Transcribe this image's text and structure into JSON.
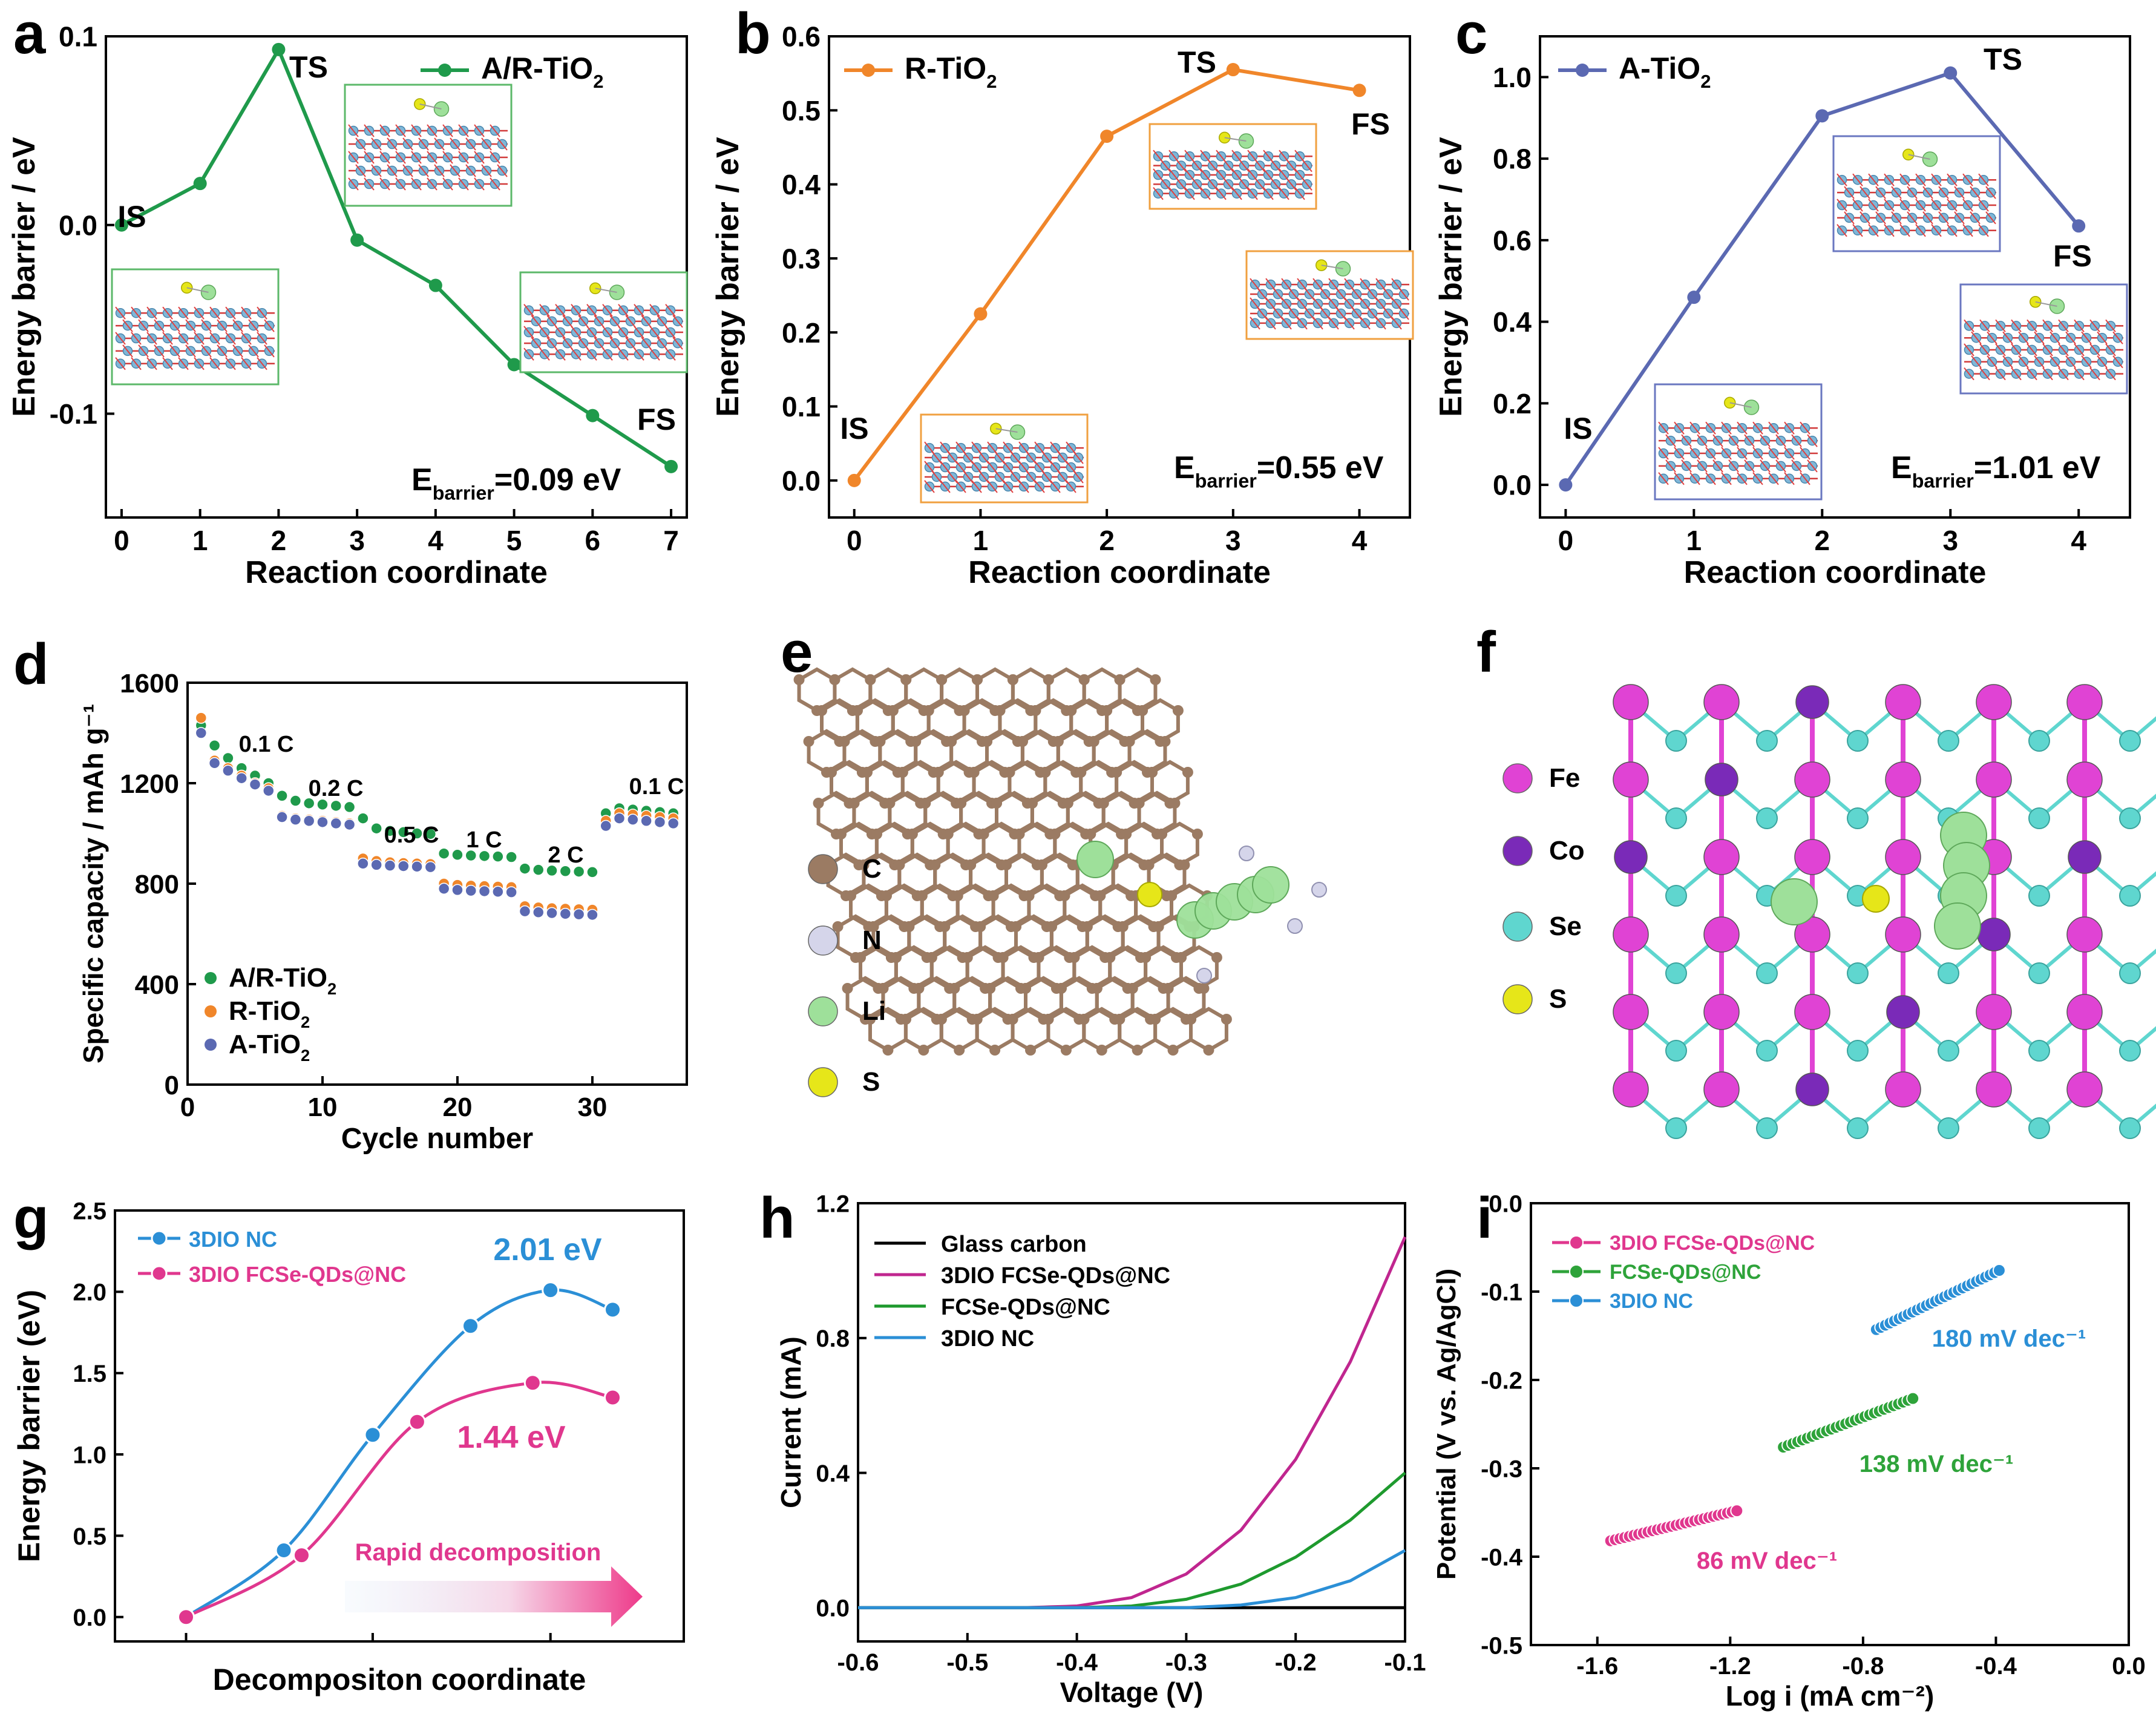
{
  "chart_data": [
    {
      "panel": "a",
      "type": "line",
      "xlabel": "Reaction coordinate",
      "ylabel": "Energy barrier / eV",
      "xlim": [
        -0.2,
        7.2
      ],
      "ylim": [
        -0.155,
        0.1
      ],
      "xticks": [
        0,
        1,
        2,
        3,
        4,
        5,
        6,
        7
      ],
      "yticks": [
        -0.1,
        0.0,
        0.1
      ],
      "ytick_labels": [
        "-0.1",
        "0.0",
        "0.1"
      ],
      "series": [
        {
          "name": "A/R-TiO₂",
          "color": "#1f9a4b",
          "x": [
            0,
            1,
            2,
            3,
            4,
            5,
            6,
            7
          ],
          "y": [
            0.0,
            0.022,
            0.093,
            -0.008,
            -0.032,
            -0.074,
            -0.101,
            -0.128
          ]
        }
      ],
      "point_labels": [
        "IS",
        "TS",
        "FS"
      ],
      "annotation": {
        "main": "E",
        "sub": "barrier",
        "tail": "=0.09 eV"
      }
    },
    {
      "panel": "b",
      "type": "line",
      "xlabel": "Reaction coordinate",
      "ylabel": "Energy barrier / eV",
      "xlim": [
        -0.2,
        4.4
      ],
      "ylim": [
        -0.05,
        0.6
      ],
      "xticks": [
        0,
        1,
        2,
        3,
        4
      ],
      "yticks": [
        0.0,
        0.1,
        0.2,
        0.3,
        0.4,
        0.5,
        0.6
      ],
      "ytick_labels": [
        "0.0",
        "0.1",
        "0.2",
        "0.3",
        "0.4",
        "0.5",
        "0.6"
      ],
      "series": [
        {
          "name": "R-TiO₂",
          "color": "#f0862a",
          "x": [
            0,
            1,
            2,
            3,
            4
          ],
          "y": [
            0.0,
            0.225,
            0.465,
            0.555,
            0.527
          ]
        }
      ],
      "point_labels": [
        "IS",
        "TS",
        "FS"
      ],
      "annotation": {
        "main": "E",
        "sub": "barrier",
        "tail": "=0.55 eV"
      }
    },
    {
      "panel": "c",
      "type": "line",
      "xlabel": "Reaction coordinate",
      "ylabel": "Energy barrier / eV",
      "xlim": [
        -0.2,
        4.4
      ],
      "ylim": [
        -0.08,
        1.1
      ],
      "xticks": [
        0,
        1,
        2,
        3,
        4
      ],
      "yticks": [
        0.0,
        0.2,
        0.4,
        0.6,
        0.8,
        1.0
      ],
      "ytick_labels": [
        "0.0",
        "0.2",
        "0.4",
        "0.6",
        "0.8",
        "1.0"
      ],
      "series": [
        {
          "name": "A-TiO₂",
          "color": "#5b69b2",
          "x": [
            0,
            1,
            2,
            3,
            4
          ],
          "y": [
            0.0,
            0.46,
            0.905,
            1.01,
            0.635
          ]
        }
      ],
      "point_labels": [
        "IS",
        "TS",
        "FS"
      ],
      "annotation": {
        "main": "E",
        "sub": "barrier",
        "tail": "=1.01 eV"
      }
    },
    {
      "panel": "d",
      "type": "scatter",
      "xlabel": "Cycle number",
      "ylabel": "Specific capacity / mAh g⁻¹",
      "xlim": [
        0,
        37
      ],
      "ylim": [
        0,
        1600
      ],
      "xticks": [
        0,
        10,
        20,
        30
      ],
      "yticks": [
        0,
        400,
        800,
        1200,
        1600
      ],
      "ytick_labels": [
        "0",
        "400",
        "800",
        "1200",
        "1600"
      ],
      "rate_labels": [
        "0.1 C",
        "0.2 C",
        "0.5 C",
        "1 C",
        "2 C",
        "0.1 C"
      ],
      "series": [
        {
          "name": "A/R-TiO₂",
          "color": "#1f9a4b",
          "values": [
            1430,
            1350,
            1300,
            1260,
            1230,
            1200,
            1150,
            1130,
            1120,
            1115,
            1110,
            1105,
            1060,
            1020,
            1010,
            1005,
            1000,
            998,
            920,
            915,
            912,
            910,
            908,
            906,
            860,
            855,
            852,
            850,
            848,
            846,
            1080,
            1100,
            1095,
            1090,
            1085,
            1080
          ]
        },
        {
          "name": "R-TiO₂",
          "color": "#f0862a",
          "values": [
            1460,
            1290,
            1260,
            1230,
            1200,
            1180,
            1070,
            1060,
            1055,
            1050,
            1045,
            1040,
            900,
            890,
            885,
            882,
            880,
            878,
            800,
            795,
            792,
            790,
            788,
            786,
            710,
            705,
            702,
            700,
            698,
            696,
            1050,
            1080,
            1075,
            1070,
            1065,
            1060
          ]
        },
        {
          "name": "A-TiO₂",
          "color": "#5b69b2",
          "values": [
            1400,
            1280,
            1250,
            1220,
            1195,
            1170,
            1065,
            1055,
            1050,
            1045,
            1040,
            1035,
            880,
            875,
            872,
            870,
            868,
            866,
            780,
            775,
            772,
            770,
            768,
            766,
            690,
            686,
            683,
            680,
            678,
            676,
            1030,
            1060,
            1055,
            1050,
            1045,
            1040
          ]
        }
      ]
    },
    {
      "panel": "e",
      "type": "table",
      "legend": [
        {
          "label": "C",
          "color": "#9b7b63"
        },
        {
          "label": "N",
          "color": "#d5d5ea"
        },
        {
          "label": "Li",
          "color": "#9ee09a"
        },
        {
          "label": "S",
          "color": "#e6e619"
        }
      ]
    },
    {
      "panel": "f",
      "type": "table",
      "legend": [
        {
          "label": "Fe",
          "color": "#e043d4"
        },
        {
          "label": "Co",
          "color": "#7a2ab8"
        },
        {
          "label": "Se",
          "color": "#5fd6cf"
        },
        {
          "label": "S",
          "color": "#e6e619"
        }
      ]
    },
    {
      "panel": "g",
      "type": "line",
      "xlabel": "Decompositon coordinate",
      "ylabel": "Energy barrier (eV)",
      "xlim": [
        -0.8,
        5.6
      ],
      "ylim": [
        -0.15,
        2.5
      ],
      "yticks": [
        0.0,
        0.5,
        1.0,
        1.5,
        2.0,
        2.5
      ],
      "ytick_labels": [
        "0.0",
        "0.5",
        "1.0",
        "1.5",
        "2.0",
        "2.5"
      ],
      "series": [
        {
          "name": "3DIO NC",
          "color": "#2b8fd6",
          "x": [
            0,
            1.1,
            2.1,
            3.2,
            4.1,
            4.8
          ],
          "y": [
            0.0,
            0.41,
            1.12,
            1.79,
            2.01,
            1.89
          ]
        },
        {
          "name": "3DIO FCSe-QDs@NC",
          "color": "#e0378e",
          "x": [
            0,
            1.3,
            2.6,
            3.9,
            4.8
          ],
          "y": [
            0.0,
            0.38,
            1.2,
            1.44,
            1.35
          ]
        }
      ],
      "annotations": [
        "2.01 eV",
        "1.44 eV",
        "Rapid decomposition"
      ]
    },
    {
      "panel": "h",
      "type": "line",
      "xlabel": "Voltage (V)",
      "ylabel": "Current (mA)",
      "xlim": [
        -0.6,
        -0.1
      ],
      "ylim": [
        -0.1,
        1.2
      ],
      "xticks": [
        -0.6,
        -0.5,
        -0.4,
        -0.3,
        -0.2,
        -0.1
      ],
      "xtick_labels": [
        "-0.6",
        "-0.5",
        "-0.4",
        "-0.3",
        "-0.2",
        "-0.1"
      ],
      "yticks": [
        0.0,
        0.4,
        0.8,
        1.2
      ],
      "ytick_labels": [
        "0.0",
        "0.4",
        "0.8",
        "1.2"
      ],
      "series": [
        {
          "name": "Glass carbon",
          "color": "#000000",
          "x": [
            -0.6,
            -0.1
          ],
          "y": [
            0.0,
            0.0
          ]
        },
        {
          "name": "3DIO FCSe-QDs@NC",
          "color": "#c0268f",
          "x": [
            -0.6,
            -0.45,
            -0.4,
            -0.35,
            -0.3,
            -0.25,
            -0.2,
            -0.15,
            -0.1
          ],
          "y": [
            0.0,
            0.0,
            0.005,
            0.03,
            0.1,
            0.23,
            0.44,
            0.73,
            1.1
          ]
        },
        {
          "name": "FCSe-QDs@NC",
          "color": "#1e9a2e",
          "x": [
            -0.6,
            -0.4,
            -0.35,
            -0.3,
            -0.25,
            -0.2,
            -0.15,
            -0.1
          ],
          "y": [
            0.0,
            0.0,
            0.005,
            0.025,
            0.07,
            0.15,
            0.26,
            0.4
          ]
        },
        {
          "name": "3DIO NC",
          "color": "#2b8fd6",
          "x": [
            -0.6,
            -0.3,
            -0.25,
            -0.2,
            -0.15,
            -0.1
          ],
          "y": [
            0.0,
            0.0,
            0.008,
            0.03,
            0.08,
            0.17
          ]
        }
      ]
    },
    {
      "panel": "i",
      "type": "scatter",
      "xlabel": "Log i (mA cm⁻²)",
      "ylabel": "Potential (V vs. Ag/AgCl)",
      "xlim": [
        -1.8,
        0.0
      ],
      "ylim": [
        -0.5,
        0.0
      ],
      "xticks": [
        -1.6,
        -1.2,
        -0.8,
        -0.4,
        0.0
      ],
      "xtick_labels": [
        "-1.6",
        "-1.2",
        "-0.8",
        "-0.4",
        "0.0"
      ],
      "yticks": [
        -0.5,
        -0.4,
        -0.3,
        -0.2,
        -0.1,
        0.0
      ],
      "ytick_labels": [
        "-0.5",
        "-0.4",
        "-0.3",
        "-0.2",
        "-0.1",
        "0.0"
      ],
      "series": [
        {
          "name": "3DIO FCSe-QDs@NC",
          "color": "#e0378e",
          "x_range": [
            -1.56,
            -1.18
          ],
          "y_range": [
            -0.382,
            -0.348
          ],
          "tafel": "86 mV dec⁻¹"
        },
        {
          "name": "FCSe-QDs@NC",
          "color": "#2ea33a",
          "x_range": [
            -1.04,
            -0.65
          ],
          "y_range": [
            -0.276,
            -0.221
          ],
          "tafel": "138 mV dec⁻¹"
        },
        {
          "name": "3DIO NC",
          "color": "#2b8fd6",
          "x_range": [
            -0.76,
            -0.39
          ],
          "y_range": [
            -0.143,
            -0.076
          ],
          "tafel": "180 mV dec⁻¹"
        }
      ]
    }
  ],
  "panel_letters": [
    "a",
    "b",
    "c",
    "d",
    "e",
    "f",
    "g",
    "h",
    "i"
  ],
  "colors": {
    "axis": "#000000",
    "frame_green": "#5cb86a",
    "frame_orange": "#f0a040",
    "frame_blue": "#6a77c0"
  }
}
